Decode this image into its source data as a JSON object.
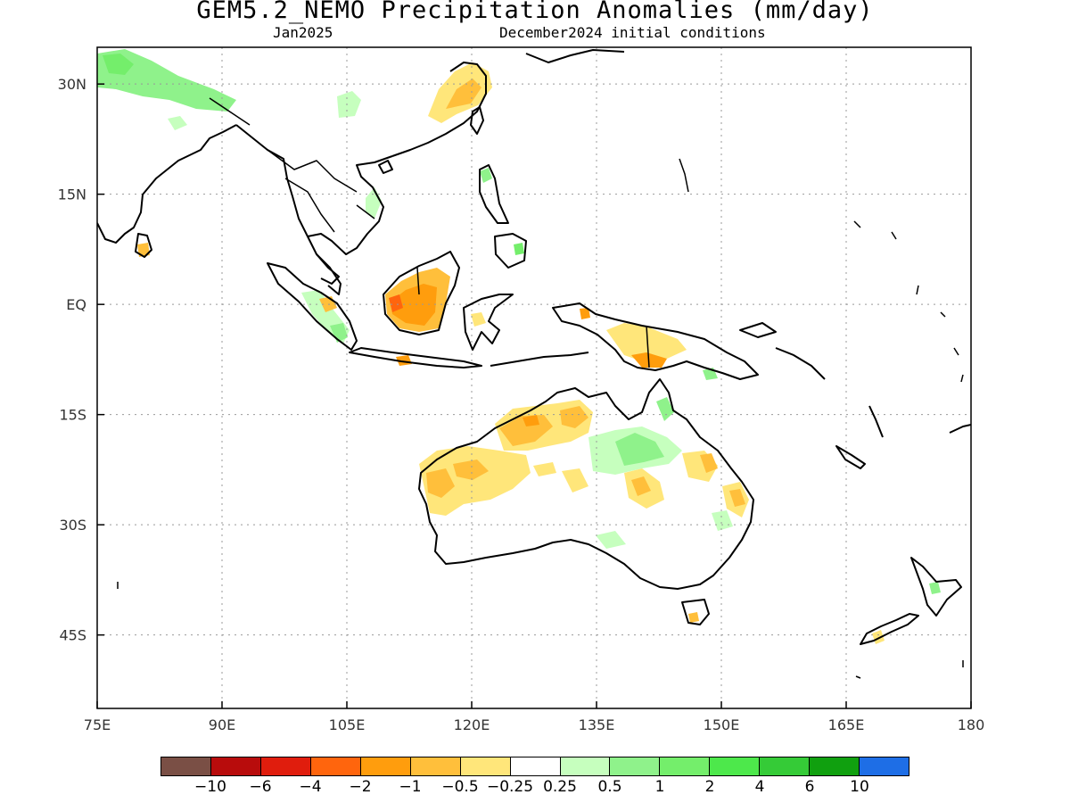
{
  "title": "GEM5.2_NEMO Precipitation Anomalies (mm/day)",
  "subtitle_left": "Jan2025",
  "subtitle_right": "December2024 initial conditions",
  "map": {
    "lon_range": [
      75,
      180
    ],
    "lat_range": [
      -55,
      35
    ],
    "x_ticks": [
      "75E",
      "90E",
      "105E",
      "120E",
      "135E",
      "150E",
      "165E",
      "180"
    ],
    "y_ticks": [
      "30N",
      "15N",
      "EQ",
      "15S",
      "30S",
      "45S"
    ],
    "grid": true
  },
  "colorbar": {
    "colors": [
      "#7a4f45",
      "#b80c0c",
      "#e01d0d",
      "#ff650d",
      "#ff9d0d",
      "#ffbf3b",
      "#ffe67a",
      "#ffffff",
      "#c6ffbe",
      "#8ff28b",
      "#74ee6b",
      "#4de84b",
      "#35cb37",
      "#10a00f",
      "#1e6ee6"
    ],
    "labels": [
      "−10",
      "−6",
      "−4",
      "−2",
      "−1",
      "−0.5",
      "−0.25",
      "0.25",
      "0.5",
      "1",
      "2",
      "4",
      "6",
      "10"
    ]
  }
}
